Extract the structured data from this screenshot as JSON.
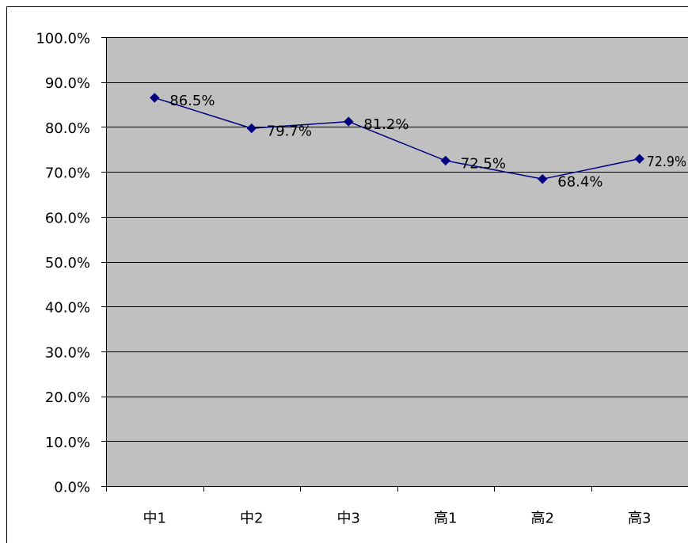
{
  "chart_data": {
    "type": "line",
    "categories": [
      "中1",
      "中2",
      "中3",
      "高1",
      "高2",
      "高3"
    ],
    "series": [
      {
        "values": [
          86.5,
          79.7,
          81.2,
          72.5,
          68.4,
          72.9
        ],
        "data_labels": [
          "86.5%",
          "79.7%",
          "81.2%",
          "72.5%",
          "68.4%",
          "72.9%"
        ],
        "color": "#000080"
      }
    ],
    "ylim": [
      0,
      100
    ],
    "yticks": [
      0,
      10,
      20,
      30,
      40,
      50,
      60,
      70,
      80,
      90,
      100
    ],
    "ytick_labels": [
      "0.0%",
      "10.0%",
      "20.0%",
      "30.0%",
      "40.0%",
      "50.0%",
      "60.0%",
      "70.0%",
      "80.0%",
      "90.0%",
      "100.0%"
    ],
    "grid": true,
    "legend": "none",
    "plot_background": "#C0C0C0",
    "gridline_color": "#000000"
  }
}
